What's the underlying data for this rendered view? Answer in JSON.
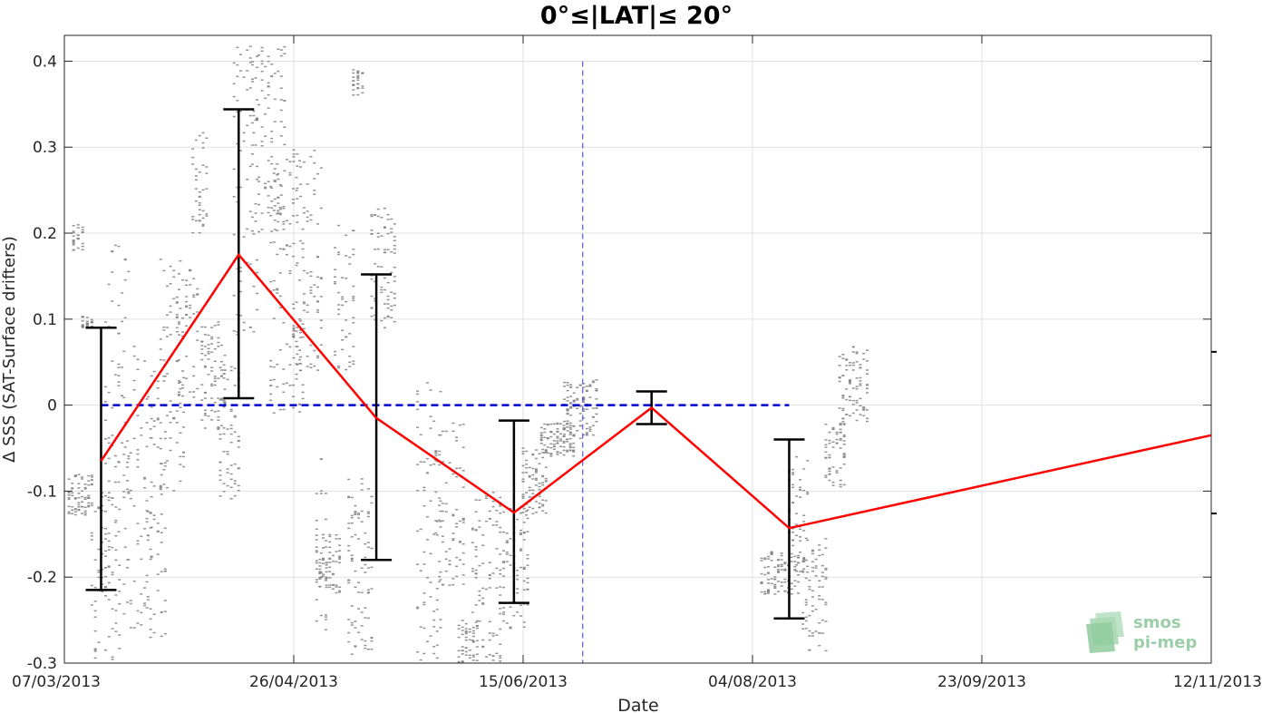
{
  "chart_data": {
    "type": "line",
    "title": "0°≤|LAT|≤ 20°",
    "xlabel": "Date",
    "ylabel": "Δ SSS (SAT-Surface drifters)",
    "xlim": [
      "07/03/2013",
      "12/11/2013"
    ],
    "ylim": [
      -0.3,
      0.43
    ],
    "x_ticks": [
      "07/03/2013",
      "26/04/2013",
      "15/06/2013",
      "04/08/2013",
      "23/09/2013",
      "12/11/2013"
    ],
    "y_ticks": [
      -0.3,
      -0.2,
      -0.1,
      0,
      0.1,
      0.2,
      0.3,
      0.4
    ],
    "y_tick_labels": [
      "-0.3",
      "-0.2",
      "-0.1",
      "0",
      "0.1",
      "0.2",
      "0.3",
      "0.4"
    ],
    "grid": true,
    "colors": {
      "mean_line": "#ff0000",
      "zero_line": "#0000cc",
      "error_bars": "#000000",
      "scatter": "#808080",
      "marker_line": "#3333cc"
    },
    "mean_series": {
      "dates": [
        "2013-03-15",
        "2013-04-14",
        "2013-05-14",
        "2013-06-13",
        "2013-07-13",
        "2013-08-12",
        "2013-11-12"
      ],
      "values": [
        -0.065,
        0.175,
        -0.015,
        -0.125,
        -0.003,
        -0.143,
        -0.035
      ]
    },
    "error_bars": [
      {
        "date": "2013-03-15",
        "low": -0.215,
        "high": 0.09
      },
      {
        "date": "2013-04-14",
        "low": 0.008,
        "high": 0.344
      },
      {
        "date": "2013-05-14",
        "low": -0.18,
        "high": 0.152
      },
      {
        "date": "2013-06-13",
        "low": -0.23,
        "high": -0.018
      },
      {
        "date": "2013-07-13",
        "low": -0.022,
        "high": 0.016
      },
      {
        "date": "2013-08-12",
        "low": -0.248,
        "high": -0.04
      }
    ],
    "zero_reference": {
      "start": "2013-03-15",
      "end": "2013-08-12",
      "value": 0
    },
    "vertical_marker": {
      "date": "2013-06-28"
    },
    "right_axis_ticks": [
      0.062,
      -0.126
    ],
    "scatter_clusters": [
      {
        "start": "2013-03-08",
        "end": "2013-03-13",
        "min": -0.13,
        "max": -0.08
      },
      {
        "start": "2013-03-09",
        "end": "2013-03-11",
        "min": 0.18,
        "max": 0.21
      },
      {
        "start": "2013-03-11",
        "end": "2013-03-13",
        "min": 0.09,
        "max": 0.105
      },
      {
        "start": "2013-03-13",
        "end": "2013-03-19",
        "min": -0.3,
        "max": -0.1
      },
      {
        "start": "2013-03-16",
        "end": "2013-03-21",
        "min": -0.2,
        "max": 0.2
      },
      {
        "start": "2013-03-20",
        "end": "2013-03-26",
        "min": -0.26,
        "max": 0.07
      },
      {
        "start": "2013-03-25",
        "end": "2013-03-29",
        "min": -0.27,
        "max": 0.05
      },
      {
        "start": "2013-03-28",
        "end": "2013-04-02",
        "min": -0.1,
        "max": 0.17
      },
      {
        "start": "2013-04-01",
        "end": "2013-04-05",
        "min": 0.0,
        "max": 0.16
      },
      {
        "start": "2013-04-04",
        "end": "2013-04-07",
        "min": 0.2,
        "max": 0.32
      },
      {
        "start": "2013-04-06",
        "end": "2013-04-11",
        "min": -0.03,
        "max": 0.1
      },
      {
        "start": "2013-04-10",
        "end": "2013-04-14",
        "min": -0.11,
        "max": 0.05
      },
      {
        "start": "2013-04-13",
        "end": "2013-04-18",
        "min": 0.08,
        "max": 0.42
      },
      {
        "start": "2013-04-17",
        "end": "2013-04-24",
        "min": 0.2,
        "max": 0.42
      },
      {
        "start": "2013-04-21",
        "end": "2013-04-28",
        "min": -0.01,
        "max": 0.29
      },
      {
        "start": "2013-04-26",
        "end": "2013-05-02",
        "min": 0.04,
        "max": 0.3
      },
      {
        "start": "2013-05-01",
        "end": "2013-05-03",
        "min": -0.28,
        "max": -0.06
      },
      {
        "start": "2013-05-01",
        "end": "2013-05-06",
        "min": -0.22,
        "max": -0.15
      },
      {
        "start": "2013-05-05",
        "end": "2013-05-09",
        "min": 0.04,
        "max": 0.21
      },
      {
        "start": "2013-05-08",
        "end": "2013-05-13",
        "min": -0.29,
        "max": -0.08
      },
      {
        "start": "2013-05-09",
        "end": "2013-05-11",
        "min": 0.36,
        "max": 0.39
      },
      {
        "start": "2013-05-13",
        "end": "2013-05-18",
        "min": 0.09,
        "max": 0.23
      },
      {
        "start": "2013-05-23",
        "end": "2013-05-28",
        "min": -0.3,
        "max": 0.03
      },
      {
        "start": "2013-05-27",
        "end": "2013-06-02",
        "min": -0.21,
        "max": -0.02
      },
      {
        "start": "2013-06-01",
        "end": "2013-06-05",
        "min": -0.3,
        "max": -0.25
      },
      {
        "start": "2013-06-04",
        "end": "2013-06-10",
        "min": -0.3,
        "max": -0.1
      },
      {
        "start": "2013-06-10",
        "end": "2013-06-16",
        "min": -0.26,
        "max": -0.12
      },
      {
        "start": "2013-06-15",
        "end": "2013-06-20",
        "min": -0.13,
        "max": -0.05
      },
      {
        "start": "2013-06-19",
        "end": "2013-06-26",
        "min": -0.06,
        "max": -0.02
      },
      {
        "start": "2013-06-24",
        "end": "2013-07-01",
        "min": -0.04,
        "max": 0.03
      },
      {
        "start": "2013-08-06",
        "end": "2013-08-14",
        "min": -0.22,
        "max": -0.17
      },
      {
        "start": "2013-08-12",
        "end": "2013-08-16",
        "min": -0.2,
        "max": -0.06
      },
      {
        "start": "2013-08-15",
        "end": "2013-08-20",
        "min": -0.29,
        "max": -0.15
      },
      {
        "start": "2013-08-20",
        "end": "2013-08-24",
        "min": -0.1,
        "max": -0.02
      },
      {
        "start": "2013-08-23",
        "end": "2013-08-29",
        "min": -0.02,
        "max": 0.07
      }
    ]
  },
  "logo": {
    "line1": "smos",
    "line2": "pi-mep"
  }
}
